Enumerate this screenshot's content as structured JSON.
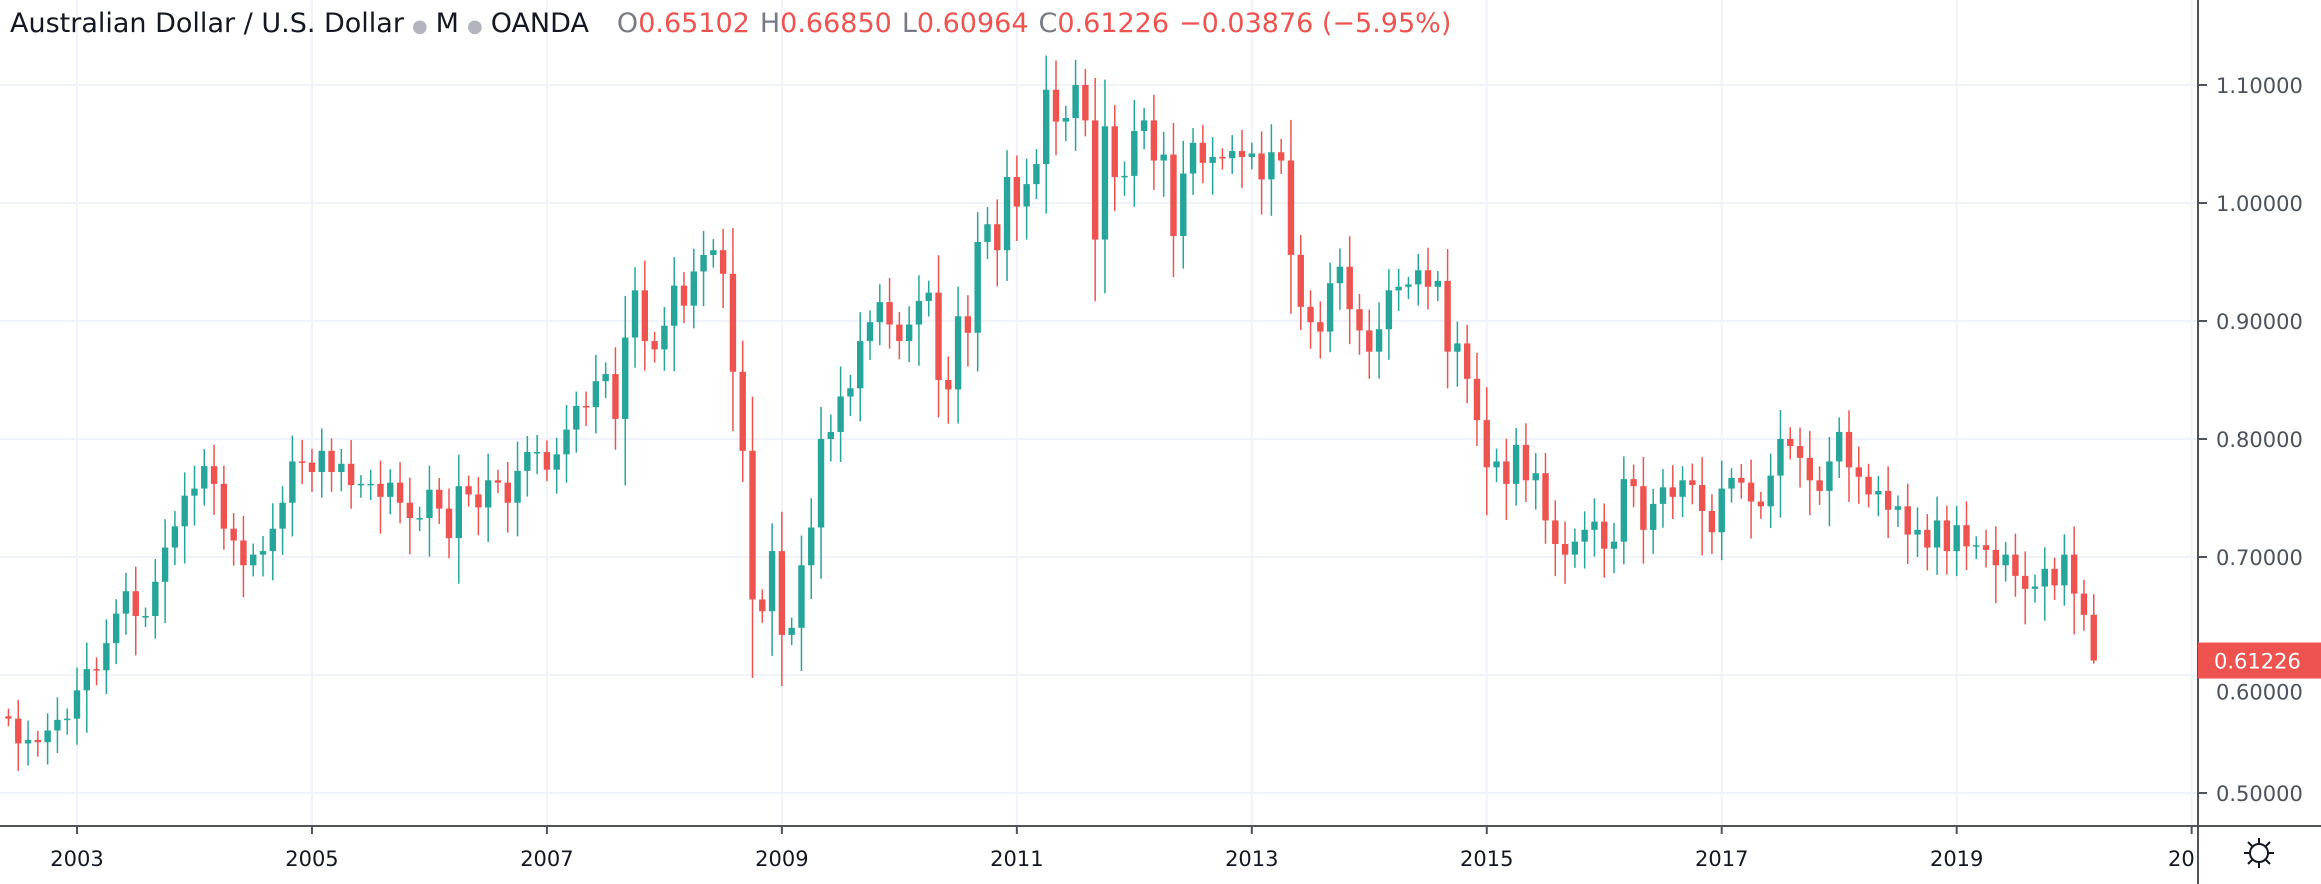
{
  "header": {
    "symbol": "Australian Dollar / U.S. Dollar",
    "interval": "M",
    "exchange": "OANDA",
    "open_label": "O",
    "open": "0.65102",
    "high_label": "H",
    "high": "0.66850",
    "low_label": "L",
    "low": "0.60964",
    "close_label": "C",
    "close": "0.61226",
    "change": "−0.03876 (−5.95%)"
  },
  "colors": {
    "up": "#26a69a",
    "down": "#ef5350",
    "grid": "#f0f3fa",
    "axis": "#50535e",
    "text": "#4c525e"
  },
  "price_label": "0.61226",
  "icons": {
    "settings": "gear-icon"
  },
  "chart_data": {
    "type": "candlestick",
    "title": "Australian Dollar / U.S. Dollar · M · OANDA",
    "interval": "monthly",
    "start": "2002-06",
    "ylim": [
      0.47,
      1.15
    ],
    "y_ticks": [
      "1.10000",
      "1.00000",
      "0.90000",
      "0.80000",
      "0.70000",
      "0.60000",
      "0.50000"
    ],
    "x_ticks": [
      "2003",
      "2005",
      "2007",
      "2009",
      "2011",
      "2013",
      "2015",
      "2017",
      "2019",
      "20"
    ],
    "first_open": 0.565,
    "close": [
      0.563,
      0.542,
      0.545,
      0.543,
      0.553,
      0.562,
      0.563,
      0.587,
      0.605,
      0.604,
      0.627,
      0.652,
      0.671,
      0.65,
      0.65,
      0.679,
      0.708,
      0.726,
      0.752,
      0.758,
      0.777,
      0.762,
      0.724,
      0.714,
      0.693,
      0.702,
      0.705,
      0.724,
      0.746,
      0.781,
      0.78,
      0.772,
      0.79,
      0.772,
      0.779,
      0.761,
      0.762,
      0.762,
      0.751,
      0.763,
      0.746,
      0.733,
      0.733,
      0.757,
      0.741,
      0.716,
      0.76,
      0.753,
      0.742,
      0.765,
      0.763,
      0.746,
      0.773,
      0.789,
      0.789,
      0.774,
      0.787,
      0.808,
      0.828,
      0.827,
      0.849,
      0.855,
      0.817,
      0.886,
      0.926,
      0.883,
      0.876,
      0.896,
      0.93,
      0.913,
      0.942,
      0.956,
      0.96,
      0.94,
      0.857,
      0.79,
      0.664,
      0.654,
      0.705,
      0.634,
      0.64,
      0.693,
      0.725,
      0.8,
      0.806,
      0.836,
      0.843,
      0.883,
      0.899,
      0.916,
      0.897,
      0.883,
      0.897,
      0.917,
      0.924,
      0.85,
      0.842,
      0.904,
      0.89,
      0.967,
      0.982,
      0.96,
      1.022,
      0.997,
      1.016,
      1.033,
      1.096,
      1.069,
      1.072,
      1.1,
      1.07,
      0.969,
      1.065,
      1.022,
      1.023,
      1.061,
      1.07,
      1.036,
      1.041,
      0.972,
      1.025,
      1.051,
      1.034,
      1.039,
      1.038,
      1.044,
      1.039,
      1.042,
      1.02,
      1.043,
      1.036,
      0.956,
      0.912,
      0.899,
      0.891,
      0.932,
      0.946,
      0.91,
      0.892,
      0.874,
      0.893,
      0.926,
      0.929,
      0.931,
      0.943,
      0.929,
      0.934,
      0.874,
      0.881,
      0.851,
      0.816,
      0.776,
      0.781,
      0.762,
      0.795,
      0.765,
      0.771,
      0.731,
      0.711,
      0.702,
      0.713,
      0.723,
      0.73,
      0.707,
      0.713,
      0.766,
      0.76,
      0.723,
      0.745,
      0.759,
      0.751,
      0.765,
      0.761,
      0.739,
      0.721,
      0.758,
      0.767,
      0.763,
      0.747,
      0.743,
      0.769,
      0.8,
      0.794,
      0.784,
      0.765,
      0.756,
      0.781,
      0.806,
      0.776,
      0.768,
      0.753,
      0.756,
      0.74,
      0.743,
      0.719,
      0.723,
      0.708,
      0.731,
      0.705,
      0.727,
      0.709,
      0.71,
      0.706,
      0.693,
      0.702,
      0.684,
      0.673,
      0.675,
      0.69,
      0.676,
      0.702,
      0.669,
      0.651,
      0.61226
    ],
    "last_candle": {
      "open": 0.65102,
      "high": 0.6685,
      "low": 0.60964,
      "close": 0.61226
    },
    "last_price": 0.61226
  }
}
